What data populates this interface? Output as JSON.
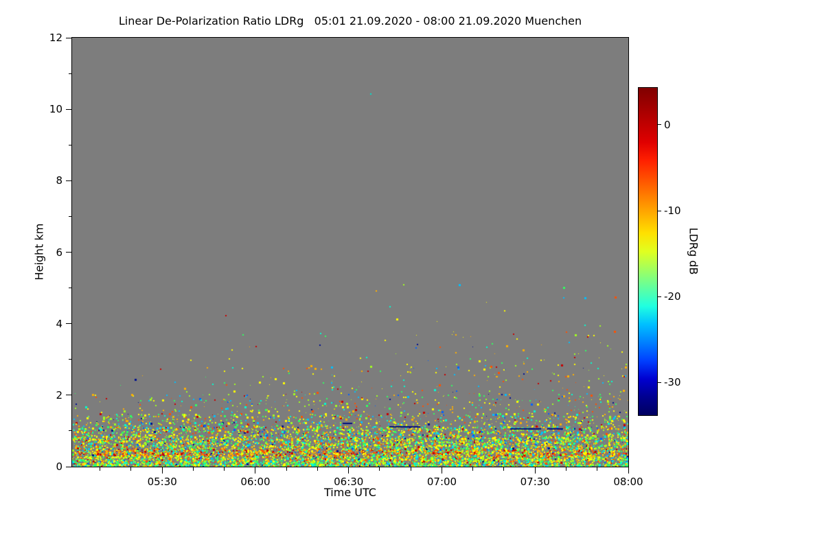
{
  "chart_data": {
    "type": "heatmap",
    "title": "Linear De-Polarization Ratio LDRg   05:01 21.09.2020 - 08:00 21.09.2020 Muenchen",
    "xlabel": "Time UTC",
    "ylabel": "Height km",
    "x_start_label": "05:01",
    "x_end_label": "08:00",
    "x_range_minutes": [
      0,
      179
    ],
    "x_ticks": [
      {
        "label": "05:30",
        "min": 29
      },
      {
        "label": "06:00",
        "min": 59
      },
      {
        "label": "06:30",
        "min": 89
      },
      {
        "label": "07:00",
        "min": 119
      },
      {
        "label": "07:30",
        "min": 149
      },
      {
        "label": "08:00",
        "min": 179
      }
    ],
    "x_minor_clock_step_min": 10,
    "y_range_km": [
      0,
      12
    ],
    "y_ticks": [
      0,
      2,
      4,
      6,
      8,
      10,
      12
    ],
    "y_minor_ticks": [
      1,
      3,
      5,
      7,
      9,
      11
    ],
    "background_color": "#7d7d7d",
    "grid": false,
    "legend_position": "right-colorbar",
    "colorbar": {
      "label": "LDRg dB",
      "ticks": [
        0,
        -10,
        -20,
        -30
      ],
      "value_top": 4.3,
      "value_bottom": -33.8,
      "colors_top_to_bottom": [
        "#800000",
        "#a00000",
        "#c00000",
        "#e00000",
        "#ff2000",
        "#ff5000",
        "#ff8000",
        "#ffb000",
        "#ffe000",
        "#e0ff20",
        "#a0ff60",
        "#60ffa0",
        "#20ffe0",
        "#00c0ff",
        "#0080ff",
        "#0040ff",
        "#0000d0",
        "#000090",
        "#000060"
      ]
    },
    "speckles": {
      "seed": 1337,
      "palette": [
        "#001090",
        "#0060ff",
        "#00c0ff",
        "#00ffd0",
        "#30ff60",
        "#a0ff20",
        "#ffff00",
        "#ffb000",
        "#ff5000",
        "#c80000"
      ],
      "layers": [
        {
          "z_min": 0.0,
          "z_max": 0.15,
          "coverage": 0.95,
          "tilt": 0,
          "weights": [
            1,
            1,
            2,
            12,
            14,
            12,
            14,
            6,
            3,
            2
          ]
        },
        {
          "z_min": 0.15,
          "z_max": 0.32,
          "coverage": 0.8,
          "tilt": 0,
          "weights": [
            1,
            1,
            3,
            8,
            10,
            12,
            16,
            10,
            6,
            3
          ]
        },
        {
          "z_min": 0.32,
          "z_max": 0.5,
          "coverage": 0.75,
          "tilt": 0,
          "weights": [
            1,
            1,
            2,
            4,
            6,
            8,
            14,
            16,
            14,
            9
          ]
        },
        {
          "z_min": 0.5,
          "z_max": 0.85,
          "coverage": 0.55,
          "tilt": 0,
          "weights": [
            1,
            2,
            4,
            8,
            10,
            12,
            18,
            9,
            4,
            2
          ]
        },
        {
          "z_min": 0.85,
          "z_max": 1.15,
          "coverage": 0.32,
          "tilt": 0,
          "weights": [
            2,
            3,
            5,
            8,
            9,
            11,
            16,
            8,
            4,
            2
          ]
        },
        {
          "z_min": 1.15,
          "z_max": 1.5,
          "coverage": 0.13,
          "tilt": 0,
          "weights": [
            2,
            3,
            4,
            6,
            8,
            10,
            14,
            8,
            4,
            2
          ]
        },
        {
          "z_min": 1.5,
          "z_max": 2.05,
          "coverage": 0.045,
          "tilt": 0.3,
          "weights": [
            2,
            2,
            3,
            5,
            6,
            8,
            12,
            8,
            5,
            3
          ]
        },
        {
          "z_min": 2.05,
          "z_max": 2.9,
          "coverage": 0.014,
          "tilt": 0.9,
          "weights": [
            2,
            2,
            3,
            4,
            5,
            7,
            12,
            8,
            5,
            3
          ]
        },
        {
          "z_min": 2.9,
          "z_max": 3.8,
          "coverage": 0.005,
          "tilt": 1.4,
          "weights": [
            1,
            1,
            2,
            3,
            4,
            6,
            10,
            6,
            4,
            2
          ]
        },
        {
          "z_min": 3.8,
          "z_max": 5.2,
          "coverage": 0.0008,
          "tilt": 0.8,
          "weights": [
            1,
            1,
            2,
            3,
            3,
            5,
            8,
            5,
            3,
            2
          ]
        }
      ],
      "features": {
        "isolated_dot": {
          "minutes": 96,
          "z_km": 10.45,
          "color": "#00e0cc"
        },
        "navy_streaks": [
          {
            "minutes": 102,
            "z_km": 1.13,
            "len_min": 10,
            "color": "#001080"
          },
          {
            "minutes": 141,
            "z_km": 1.07,
            "len_min": 10,
            "color": "#001080"
          },
          {
            "minutes": 153,
            "z_km": 1.07,
            "len_min": 5,
            "color": "#001080"
          },
          {
            "minutes": 87,
            "z_km": 1.22,
            "len_min": 3,
            "color": "#001080"
          }
        ]
      }
    }
  }
}
